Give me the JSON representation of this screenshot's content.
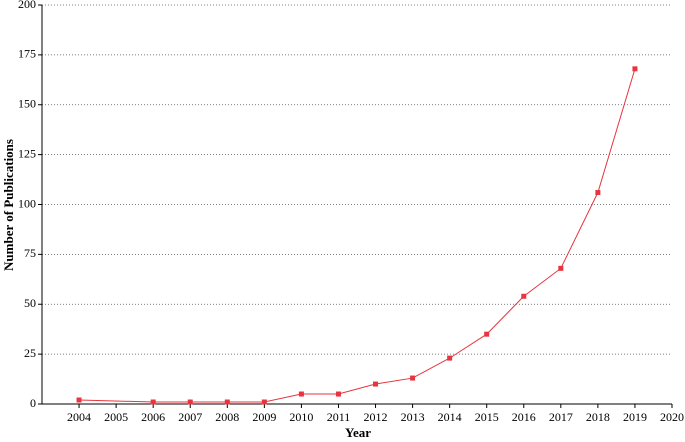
{
  "chart_data": {
    "type": "line",
    "x_label": "Year",
    "y_label": "Number of Publications",
    "x": [
      2004,
      2006,
      2007,
      2008,
      2009,
      2010,
      2011,
      2012,
      2013,
      2014,
      2015,
      2016,
      2017,
      2018,
      2019
    ],
    "series": [
      {
        "color": "#e8343f",
        "values": [
          2,
          1,
          1,
          1,
          1,
          5,
          5,
          10,
          13,
          23,
          35,
          54,
          68,
          106,
          168
        ]
      }
    ],
    "xlim": [
      2003,
      2020
    ],
    "xticks": [
      2004,
      2005,
      2006,
      2007,
      2008,
      2009,
      2010,
      2011,
      2012,
      2013,
      2014,
      2015,
      2016,
      2017,
      2018,
      2019,
      2020
    ],
    "ylim": [
      0,
      200
    ],
    "yticks": [
      0,
      25,
      50,
      75,
      100,
      125,
      150,
      175,
      200
    ],
    "grid": true
  }
}
